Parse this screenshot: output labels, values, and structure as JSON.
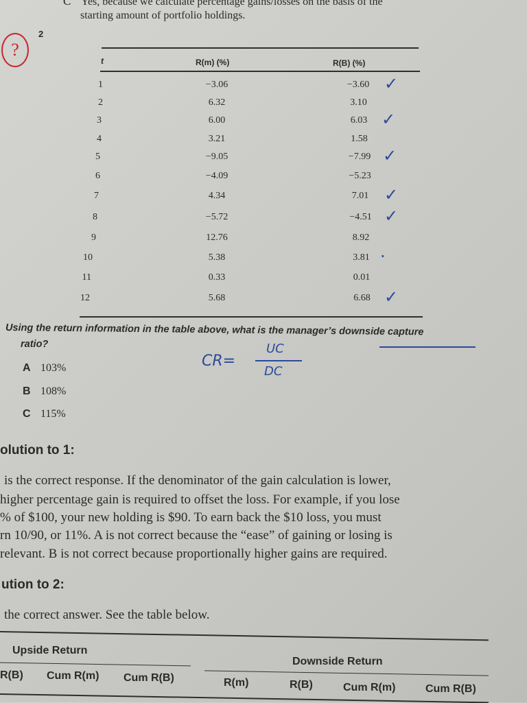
{
  "prev_option": {
    "letter": "C",
    "text_line1": "Yes, because we calculate percentage gains/losses on the basis of the",
    "text_line2": "starting amount of portfolio holdings."
  },
  "question": {
    "number": "2",
    "annotation_red": "?",
    "table": {
      "headers": [
        "t",
        "R(m) (%)",
        "R(B) (%)"
      ],
      "rows": [
        {
          "t": "1",
          "rm": "−3.06",
          "rb": "−3.60",
          "mark": "✓"
        },
        {
          "t": "2",
          "rm": "6.32",
          "rb": "3.10",
          "mark": ""
        },
        {
          "t": "3",
          "rm": "6.00",
          "rb": "6.03",
          "mark": "✓"
        },
        {
          "t": "4",
          "rm": "3.21",
          "rb": "1.58",
          "mark": ""
        },
        {
          "t": "5",
          "rm": "−9.05",
          "rb": "−7.99",
          "mark": "✓"
        },
        {
          "t": "6",
          "rm": "−4.09",
          "rb": "−5.23",
          "mark": ""
        },
        {
          "t": "7",
          "rm": "4.34",
          "rb": "7.01",
          "mark": "✓"
        },
        {
          "t": "8",
          "rm": "−5.72",
          "rb": "−4.51",
          "mark": "✓"
        },
        {
          "t": "9",
          "rm": "12.76",
          "rb": "8.92",
          "mark": ""
        },
        {
          "t": "10",
          "rm": "5.38",
          "rb": "3.81",
          "mark": "·"
        },
        {
          "t": "11",
          "rm": "0.33",
          "rb": "0.01",
          "mark": ""
        },
        {
          "t": "12",
          "rm": "5.68",
          "rb": "6.68",
          "mark": "✓"
        }
      ]
    },
    "prompt_line1": "Using the return information in the table above, what is the manager’s downside capture",
    "prompt_line2": "ratio?",
    "options": [
      {
        "letter": "A",
        "text": "103%"
      },
      {
        "letter": "B",
        "text": "108%"
      },
      {
        "letter": "C",
        "text": "115%"
      }
    ],
    "handwriting": {
      "lhs": "CR=",
      "numerator": "UC",
      "denominator": "DC"
    }
  },
  "solution1": {
    "heading": "olution to 1:",
    "lines": [
      "is the correct response. If the denominator of the gain calculation is lower,",
      "higher percentage gain is required to offset the loss. For example, if you lose",
      "% of $100, your new holding is $90. To earn back the $10 loss, you must",
      "rn 10/90, or 11%. A is not correct because the “ease” of gaining or losing is",
      "relevant. B is not correct because proportionally higher gains are required."
    ]
  },
  "solution2": {
    "heading": "ution to 2:",
    "intro": "the correct answer. See the table below.",
    "table": {
      "group_upside": "Upside Return",
      "group_downside": "Downside Return",
      "columns": [
        "R(B)",
        "Cum R(m)",
        "Cum R(B)",
        "R(m)",
        "R(B)",
        "Cum R(m)",
        "Cum R(B)"
      ]
    }
  }
}
